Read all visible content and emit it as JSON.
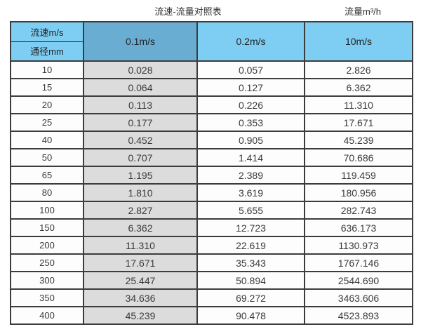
{
  "header": {
    "title": "流速-流量对照表",
    "unit_label": "流量m³/h"
  },
  "table": {
    "corner_top": "流速m/s",
    "corner_bottom": "通径mm",
    "columns": [
      "0.1m/s",
      "0.2m/s",
      "10m/s"
    ],
    "rows": [
      {
        "diameter": "10",
        "values": [
          "0.028",
          "0.057",
          "2.826"
        ]
      },
      {
        "diameter": "15",
        "values": [
          "0.064",
          "0.127",
          "6.362"
        ]
      },
      {
        "diameter": "20",
        "values": [
          "0.113",
          "0.226",
          "11.310"
        ]
      },
      {
        "diameter": "25",
        "values": [
          "0.177",
          "0.353",
          "17.671"
        ]
      },
      {
        "diameter": "40",
        "values": [
          "0.452",
          "0.905",
          "45.239"
        ]
      },
      {
        "diameter": "50",
        "values": [
          "0.707",
          "1.414",
          "70.686"
        ]
      },
      {
        "diameter": "65",
        "values": [
          "1.195",
          "2.389",
          "119.459"
        ]
      },
      {
        "diameter": "80",
        "values": [
          "1.810",
          "3.619",
          "180.956"
        ]
      },
      {
        "diameter": "100",
        "values": [
          "2.827",
          "5.655",
          "282.743"
        ]
      },
      {
        "diameter": "150",
        "values": [
          "6.362",
          "12.723",
          "636.173"
        ]
      },
      {
        "diameter": "200",
        "values": [
          "11.310",
          "22.619",
          "1130.973"
        ]
      },
      {
        "diameter": "250",
        "values": [
          "17.671",
          "35.343",
          "1767.146"
        ]
      },
      {
        "diameter": "300",
        "values": [
          "25.447",
          "50.894",
          "2544.690"
        ]
      },
      {
        "diameter": "350",
        "values": [
          "34.636",
          "69.272",
          "3463.606"
        ]
      },
      {
        "diameter": "400",
        "values": [
          "45.239",
          "90.478",
          "4523.893"
        ]
      }
    ]
  },
  "colors": {
    "light_blue_header": "#7ecdf2",
    "dark_blue_header": "#69aed2",
    "gray_column": "#dcdcdc",
    "border": "#3c3c3c",
    "text": "#333333"
  },
  "chart_data": {
    "type": "table",
    "title": "流速-流量对照表",
    "value_unit": "流量m³/h",
    "row_axis_label": "通径mm",
    "col_axis_label": "流速m/s",
    "columns": [
      "0.1m/s",
      "0.2m/s",
      "10m/s"
    ],
    "diameters_mm": [
      10,
      15,
      20,
      25,
      40,
      50,
      65,
      80,
      100,
      150,
      200,
      250,
      300,
      350,
      400
    ],
    "values": [
      [
        0.028,
        0.057,
        2.826
      ],
      [
        0.064,
        0.127,
        6.362
      ],
      [
        0.113,
        0.226,
        11.31
      ],
      [
        0.177,
        0.353,
        17.671
      ],
      [
        0.452,
        0.905,
        45.239
      ],
      [
        0.707,
        1.414,
        70.686
      ],
      [
        1.195,
        2.389,
        119.459
      ],
      [
        1.81,
        3.619,
        180.956
      ],
      [
        2.827,
        5.655,
        282.743
      ],
      [
        6.362,
        12.723,
        636.173
      ],
      [
        11.31,
        22.619,
        1130.973
      ],
      [
        17.671,
        35.343,
        1767.146
      ],
      [
        25.447,
        50.894,
        2544.69
      ],
      [
        34.636,
        69.272,
        3463.606
      ],
      [
        45.239,
        90.478,
        4523.893
      ]
    ]
  }
}
